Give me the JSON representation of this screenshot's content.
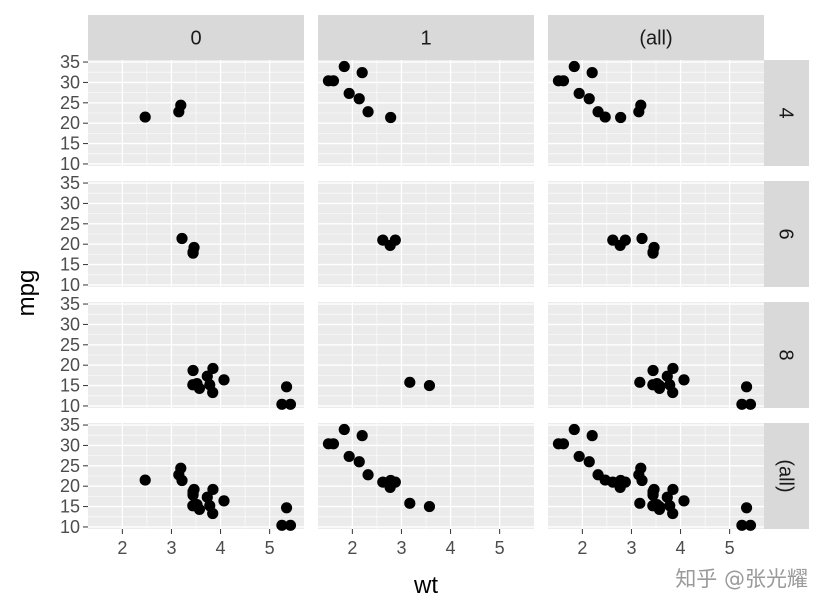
{
  "chart_data": {
    "type": "scatter",
    "xlabel": "wt",
    "ylabel": "mpg",
    "xlim": [
      1.3,
      5.7
    ],
    "ylim": [
      9.5,
      35.5
    ],
    "x_ticks": [
      "2",
      "3",
      "4",
      "5"
    ],
    "y_ticks": [
      "10",
      "15",
      "20",
      "25",
      "30",
      "35"
    ],
    "grid": true,
    "col_facets": [
      "0",
      "1",
      "(all)"
    ],
    "row_facets": [
      "4",
      "6",
      "8",
      "(all)"
    ],
    "colors": {
      "panel_bg": "#ebebeb",
      "strip_bg": "#d9d9d9",
      "grid": "#ffffff",
      "point": "#000000"
    },
    "data": {
      "0": {
        "4": [
          [
            2.465,
            21.5
          ],
          [
            3.19,
            24.4
          ],
          [
            3.15,
            22.8
          ]
        ],
        "6": [
          [
            3.215,
            21.4
          ],
          [
            3.44,
            18.1
          ],
          [
            3.46,
            19.2
          ],
          [
            3.44,
            17.8
          ]
        ],
        "8": [
          [
            3.44,
            18.7
          ],
          [
            3.57,
            14.3
          ],
          [
            4.07,
            16.4
          ],
          [
            3.73,
            17.3
          ],
          [
            3.78,
            15.2
          ],
          [
            5.25,
            10.4
          ],
          [
            5.424,
            10.4
          ],
          [
            5.345,
            14.7
          ],
          [
            3.52,
            15.5
          ],
          [
            3.435,
            15.2
          ],
          [
            3.84,
            13.3
          ],
          [
            3.845,
            19.2
          ]
        ]
      },
      "1": {
        "4": [
          [
            2.2,
            32.4
          ],
          [
            1.615,
            30.4
          ],
          [
            1.835,
            33.9
          ],
          [
            1.935,
            27.3
          ],
          [
            2.14,
            26.0
          ],
          [
            1.513,
            30.4
          ],
          [
            2.78,
            21.4
          ],
          [
            2.32,
            22.8
          ]
        ],
        "6": [
          [
            2.62,
            21.0
          ],
          [
            2.875,
            21.0
          ],
          [
            2.77,
            19.7
          ]
        ],
        "8": [
          [
            3.17,
            15.8
          ],
          [
            3.57,
            15.0
          ]
        ]
      }
    }
  },
  "watermark": "知乎 @张光耀"
}
